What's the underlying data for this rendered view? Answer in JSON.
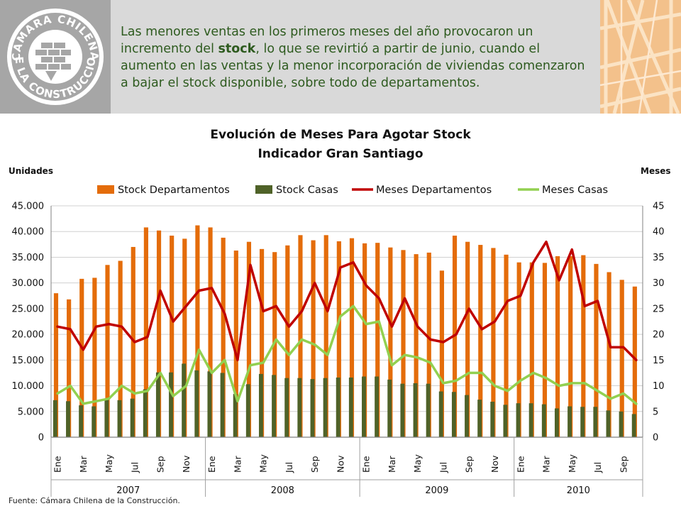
{
  "header": {
    "logo_text": "CÁMARA CHILENA DE LA CONSTRUCCIÓN",
    "headline_before": "Las menores ventas en los primeros meses del año provocaron un incremento del ",
    "headline_bold": "stock",
    "headline_after": ", lo que se revirtió a partir de junio, cuando el aumento en las ventas y la menor incorporación de viviendas comenzaron a bajar el stock disponible, sobre todo de departamentos.",
    "colors": {
      "header_bg": "#d9d9d9",
      "logo_bg": "#a6a6a6",
      "text": "#2e5b1f",
      "right_panel": "#f3c18b"
    }
  },
  "source": "Fuente: Cámara Chilena de la Construcción.",
  "chart_data": {
    "type": "bar",
    "title": "Evolución de Meses Para Agotar Stock",
    "subtitle": "Indicador Gran Santiago",
    "ylabel_left": "Unidades",
    "ylabel_right": "Meses",
    "ylim_left": [
      0,
      45000
    ],
    "ylim_right": [
      0,
      45
    ],
    "yticks_left": [
      "0",
      "5.000",
      "10.000",
      "15.000",
      "20.000",
      "25.000",
      "30.000",
      "35.000",
      "40.000",
      "45.000"
    ],
    "yticks_right": [
      "0",
      "5",
      "10",
      "15",
      "20",
      "25",
      "30",
      "35",
      "40",
      "45"
    ],
    "grid": true,
    "legend_position": "top",
    "month_tick_labels": [
      "Ene",
      "Mar",
      "May",
      "Jul",
      "Sep",
      "Nov",
      "Ene",
      "Mar",
      "May",
      "Jul",
      "Sep",
      "Nov",
      "Ene",
      "Mar",
      "May",
      "Jul",
      "Sep",
      "Nov",
      "Ene",
      "Mar",
      "May",
      "Jul",
      "Sep"
    ],
    "years": [
      {
        "label": "2007",
        "months": 12
      },
      {
        "label": "2008",
        "months": 12
      },
      {
        "label": "2009",
        "months": 12
      },
      {
        "label": "2010",
        "months": 10
      }
    ],
    "series": [
      {
        "name": "Stock Departamentos",
        "kind": "bar",
        "axis": "left",
        "color": "#e46c0a",
        "values": [
          28000,
          26800,
          30800,
          31000,
          33500,
          34300,
          37000,
          40800,
          40200,
          39200,
          38600,
          41200,
          40800,
          38800,
          36300,
          38000,
          36600,
          36000,
          37300,
          39300,
          38300,
          39300,
          38100,
          38700,
          37700,
          37800,
          36900,
          36400,
          35600,
          35900,
          32400,
          39200,
          38000,
          37400,
          36800,
          35500,
          34000,
          34000,
          33900,
          35200,
          35200,
          35400,
          33700,
          32100,
          30600,
          29300
        ]
      },
      {
        "name": "Stock Casas",
        "kind": "bar",
        "axis": "left",
        "color": "#4f6228",
        "values": [
          7200,
          7000,
          6200,
          6000,
          7300,
          7200,
          7500,
          9300,
          12600,
          12600,
          14300,
          13000,
          12800,
          12500,
          8400,
          10300,
          12300,
          12100,
          11500,
          11500,
          11300,
          11500,
          11600,
          11600,
          11800,
          11800,
          11200,
          10400,
          10500,
          10400,
          8900,
          8800,
          8200,
          7300,
          6900,
          6300,
          6600,
          6600,
          6400,
          5600,
          6000,
          5900,
          5900,
          5200,
          5000,
          4500
        ]
      },
      {
        "name": "Meses Departamentos",
        "kind": "line",
        "axis": "right",
        "color": "#c00000",
        "values": [
          21.5,
          21,
          17,
          21.5,
          22,
          21.5,
          18.5,
          19.5,
          28.5,
          22.5,
          25.5,
          28.5,
          29,
          24,
          15,
          33.5,
          24.5,
          25.5,
          21.5,
          24.5,
          30,
          24.5,
          33,
          34,
          29.5,
          27,
          21.5,
          27,
          21.5,
          19,
          18.5,
          20,
          25,
          21,
          22.5,
          26.5,
          27.5,
          34,
          38,
          30.5,
          36.5,
          25.5,
          26.5,
          17.5,
          17.5,
          15
        ]
      },
      {
        "name": "Meses Casas",
        "kind": "line",
        "axis": "right",
        "color": "#92d050",
        "values": [
          8.5,
          10,
          6.5,
          7,
          7.5,
          10,
          8.5,
          9,
          12.5,
          8,
          10,
          17,
          12.5,
          15,
          7,
          14,
          14.5,
          19,
          16,
          19,
          18,
          16,
          23.5,
          25.5,
          22,
          22.5,
          14,
          16,
          15.5,
          14.5,
          10.5,
          11,
          12.5,
          12.5,
          10,
          9,
          11,
          12.5,
          11.5,
          10,
          10.5,
          10.5,
          9,
          7.5,
          8.5,
          6.5
        ]
      }
    ]
  }
}
